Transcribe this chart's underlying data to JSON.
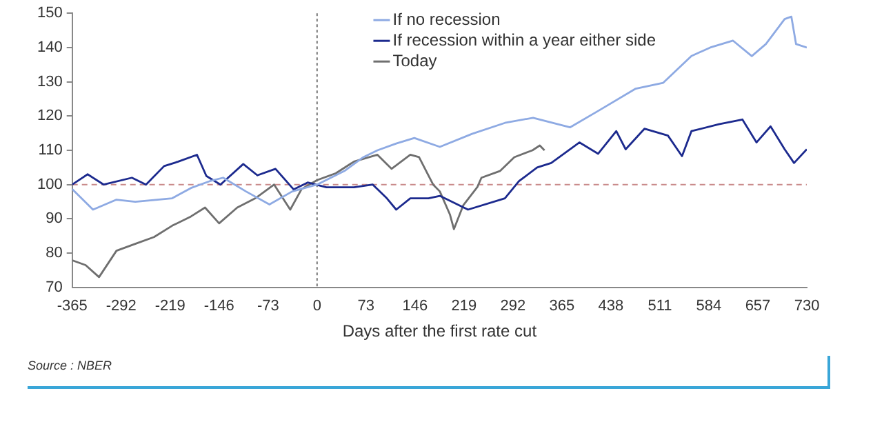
{
  "chart_data": {
    "type": "line",
    "xlabel": "Days after the first rate cut",
    "legend": "top",
    "grid": false,
    "line_style": "solid",
    "marker": "none",
    "xlim": [
      -365,
      730
    ],
    "xticks": [
      -365,
      -292,
      -219,
      -146,
      -73,
      0,
      73,
      146,
      219,
      292,
      365,
      438,
      511,
      584,
      657,
      730
    ],
    "ylim": [
      70,
      150
    ],
    "yticks": [
      70,
      80,
      90,
      100,
      110,
      120,
      130,
      140,
      150
    ],
    "ref_lines": [
      {
        "axis": "y",
        "value": 100,
        "color": "#c98a8a",
        "line_style": "dashed"
      },
      {
        "axis": "x",
        "value": 0,
        "color": "#777777",
        "line_style": "dotted"
      }
    ],
    "annotations": [
      "Source : NBER"
    ],
    "series": [
      {
        "name": "If no recession",
        "color": "#8eaae3",
        "x": [
          -365,
          -334,
          -299,
          -271,
          -216,
          -188,
          -160,
          -140,
          -106,
          -71,
          -37,
          0,
          41,
          69,
          90,
          118,
          145,
          183,
          231,
          280,
          322,
          377,
          419,
          475,
          516,
          558,
          586,
          620,
          648,
          669,
          697,
          707,
          714,
          730
        ],
        "values": [
          98.7,
          92.7,
          95.6,
          95,
          96,
          99,
          101,
          102,
          98,
          94.2,
          98,
          100,
          104,
          108,
          110,
          112,
          113.6,
          111,
          114.8,
          118,
          119.5,
          116.7,
          121.5,
          128,
          129.7,
          137.5,
          140,
          142,
          137.5,
          141,
          148.3,
          149,
          141,
          140
        ]
      },
      {
        "name": "If recession within a year either side",
        "color": "#1c2a8e",
        "x": [
          -365,
          -342,
          -318,
          -276,
          -255,
          -228,
          -207,
          -179,
          -165,
          -144,
          -110,
          -89,
          -62,
          -35,
          -14,
          14,
          55,
          83,
          104,
          118,
          139,
          166,
          183,
          225,
          280,
          301,
          328,
          349,
          391,
          419,
          446,
          460,
          488,
          523,
          544,
          558,
          599,
          634,
          655,
          676,
          697,
          711,
          730
        ],
        "values": [
          100,
          103,
          100,
          102,
          100,
          105.4,
          106.7,
          108.7,
          102.5,
          100,
          106,
          102.7,
          104.6,
          98.6,
          100.6,
          99.2,
          99.2,
          100,
          96,
          92.7,
          96,
          96,
          96.7,
          92.7,
          96,
          101,
          105,
          106.3,
          112.3,
          109,
          115.6,
          110.3,
          116.3,
          114.3,
          108.3,
          115.6,
          117.6,
          119,
          112.3,
          117,
          110.3,
          106.3,
          110.3
        ]
      },
      {
        "name": "Today",
        "color": "#6f6f6f",
        "x": [
          -365,
          -345,
          -325,
          -299,
          -271,
          -243,
          -216,
          -188,
          -167,
          -146,
          -119,
          -92,
          -64,
          -40,
          -23,
          0,
          28,
          55,
          90,
          111,
          139,
          152,
          173,
          183,
          198,
          204,
          218,
          239,
          245,
          273,
          294,
          321,
          332,
          339
        ],
        "values": [
          77.9,
          76.5,
          73,
          80.7,
          82.7,
          84.7,
          88,
          90.7,
          93.3,
          88.7,
          93.3,
          96,
          100,
          92.7,
          98.7,
          101.3,
          103.3,
          106.7,
          108.7,
          104.6,
          108.7,
          108,
          100,
          98,
          91.3,
          87,
          94,
          99.3,
          102,
          104,
          108,
          110,
          111.4,
          110
        ]
      }
    ]
  }
}
